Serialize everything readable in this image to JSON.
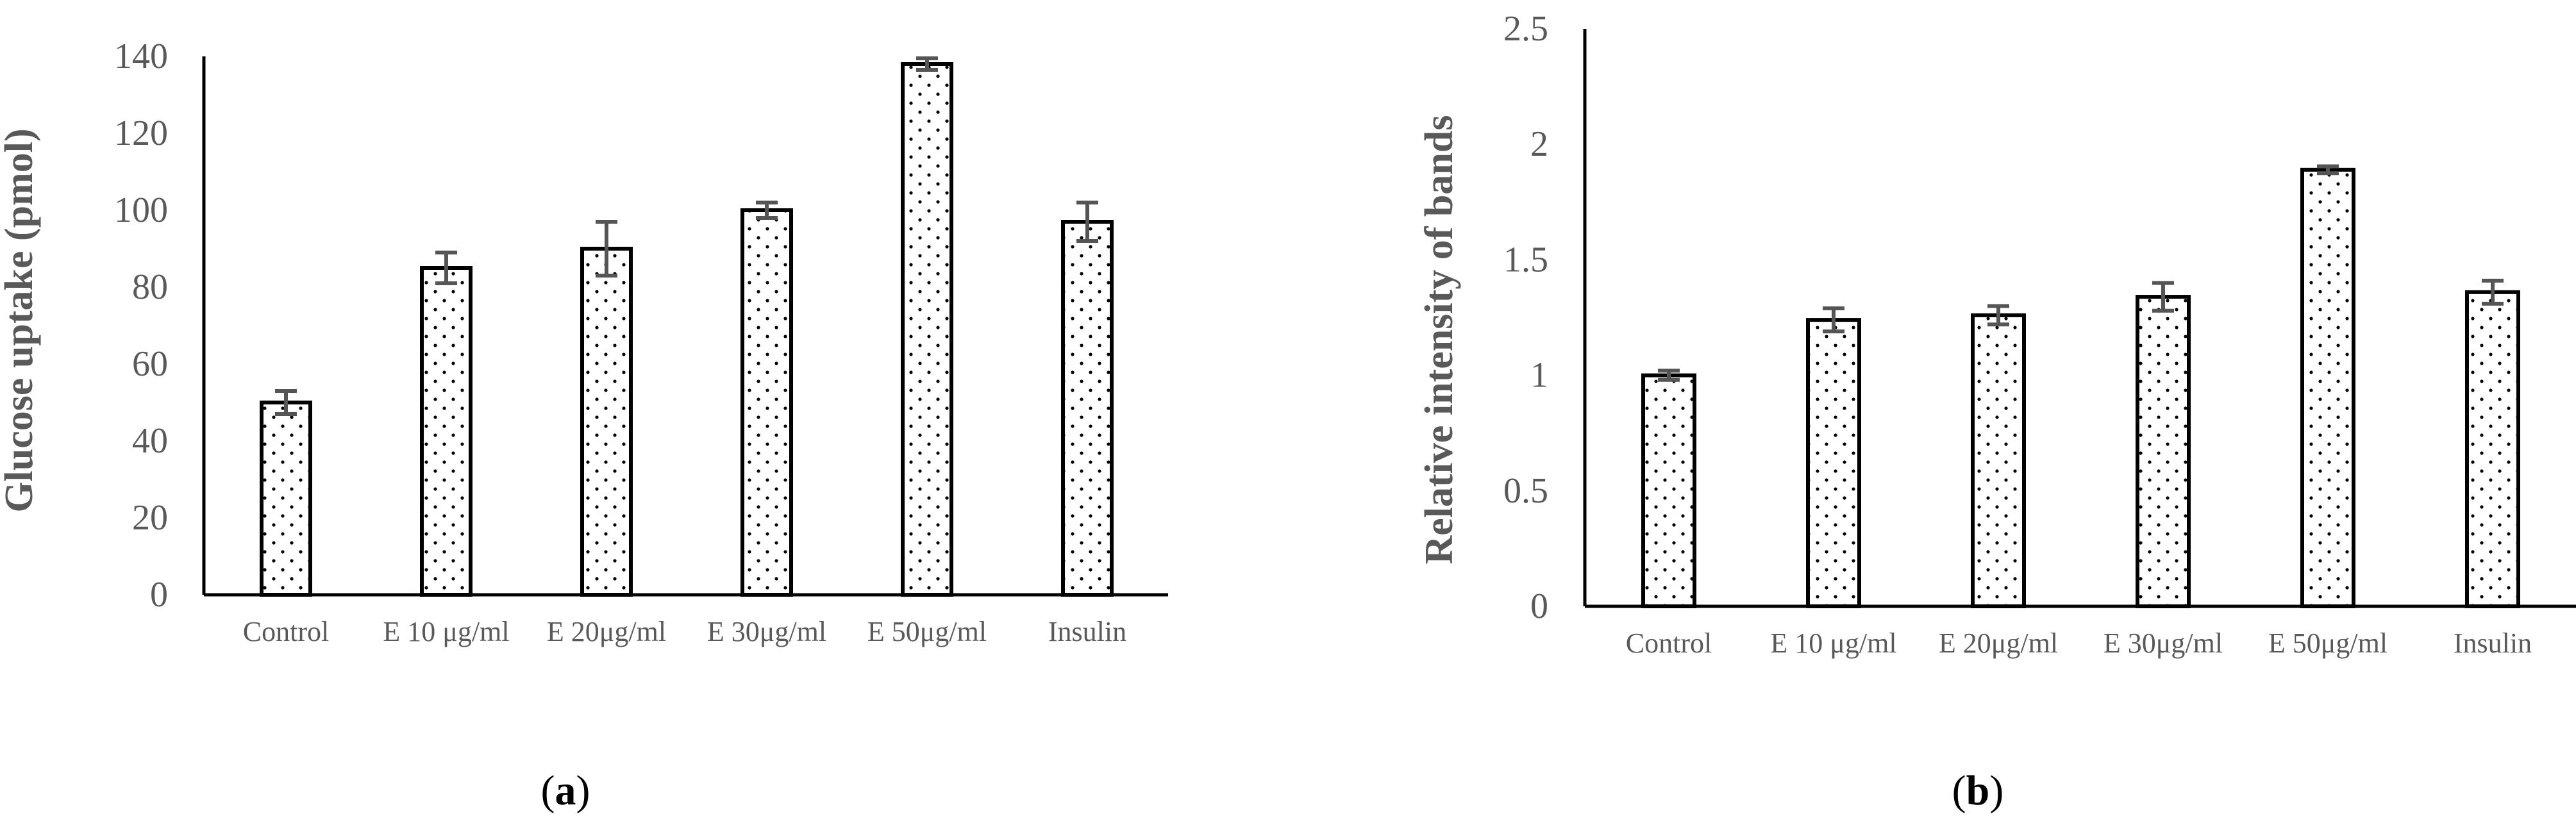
{
  "colors": {
    "bar_fill": "#ffffff",
    "bar_stroke": "#000000",
    "dot": "#000000",
    "axis": "#000000",
    "error_bar": "#555555",
    "tick_text": "#595959",
    "axis_title": "#595959",
    "caption": "#000000"
  },
  "chart_data": [
    {
      "type": "bar",
      "caption": {
        "open": "(",
        "letter": "a",
        "close": ")"
      },
      "categories": [
        "Control",
        "E 10 μg/ml",
        "E 20μg/ml",
        "E 30μg/ml",
        "E 50μg/ml",
        "Insulin"
      ],
      "values": [
        50,
        85,
        90,
        100,
        138,
        97
      ],
      "errors": [
        3,
        4,
        7,
        2,
        1.5,
        5
      ],
      "ylabel": "Glucose uptake (pmol)",
      "xlabel": "",
      "ylim": [
        0,
        140
      ],
      "yticks": [
        0,
        20,
        40,
        60,
        80,
        100,
        120,
        140
      ],
      "ytick_labels": [
        "0",
        "20",
        "40",
        "60",
        "80",
        "100",
        "120",
        "140"
      ],
      "grid": false,
      "legend": "none"
    },
    {
      "type": "bar",
      "caption": {
        "open": "(",
        "letter": "b",
        "close": ")"
      },
      "categories": [
        "Control",
        "E 10 μg/ml",
        "E 20μg/ml",
        "E 30μg/ml",
        "E 50μg/ml",
        "Insulin"
      ],
      "values": [
        1.0,
        1.24,
        1.26,
        1.34,
        1.89,
        1.36
      ],
      "errors": [
        0.02,
        0.05,
        0.04,
        0.06,
        0.015,
        0.05
      ],
      "ylabel": "Relative intensity of bands",
      "xlabel": "",
      "ylim": [
        0,
        2.5
      ],
      "yticks": [
        0,
        0.5,
        1,
        1.5,
        2,
        2.5
      ],
      "ytick_labels": [
        "0",
        "0.5",
        "1",
        "1.5",
        "2",
        "2.5"
      ],
      "grid": false,
      "legend": "none"
    }
  ]
}
